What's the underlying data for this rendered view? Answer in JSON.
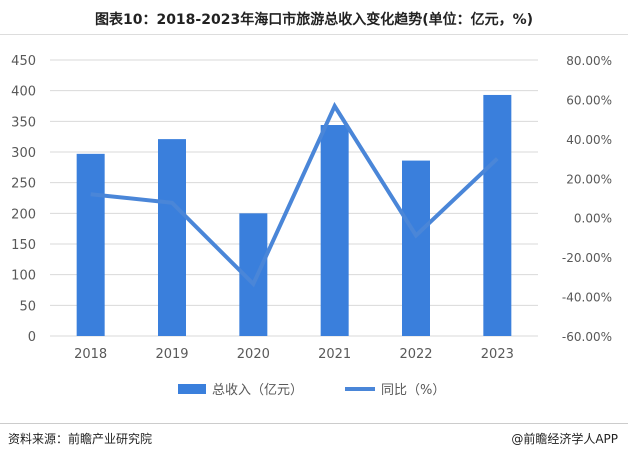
{
  "chart_data": {
    "type": "bar+line",
    "title": "图表10：2018-2023年海口市旅游总收入变化趋势(单位：亿元，%)",
    "categories": [
      "2018",
      "2019",
      "2020",
      "2021",
      "2022",
      "2023"
    ],
    "series": [
      {
        "name": "总收入（亿元）",
        "type": "bar",
        "axis": "left",
        "values": [
          297,
          321,
          200,
          344,
          286,
          393
        ],
        "color": "#3a7fdc"
      },
      {
        "name": "同比（%）",
        "type": "line",
        "axis": "right",
        "values": [
          11.9,
          7.6,
          -33.6,
          56.6,
          -9.0,
          30.0
        ],
        "color": "#4a86d8"
      }
    ],
    "ylim_left": [
      0,
      450
    ],
    "yticks_left": [
      "0",
      "50",
      "100",
      "150",
      "200",
      "250",
      "300",
      "350",
      "400",
      "450"
    ],
    "ylim_right": [
      -60,
      80
    ],
    "yticks_right": [
      "-60.00%",
      "-40.00%",
      "-20.00%",
      "0.00%",
      "20.00%",
      "40.00%",
      "60.00%",
      "80.00%"
    ],
    "grid": true,
    "legend": "bottom"
  },
  "footer": {
    "source": "资料来源：前瞻产业研究院",
    "brand": "@前瞻经济学人APP"
  }
}
